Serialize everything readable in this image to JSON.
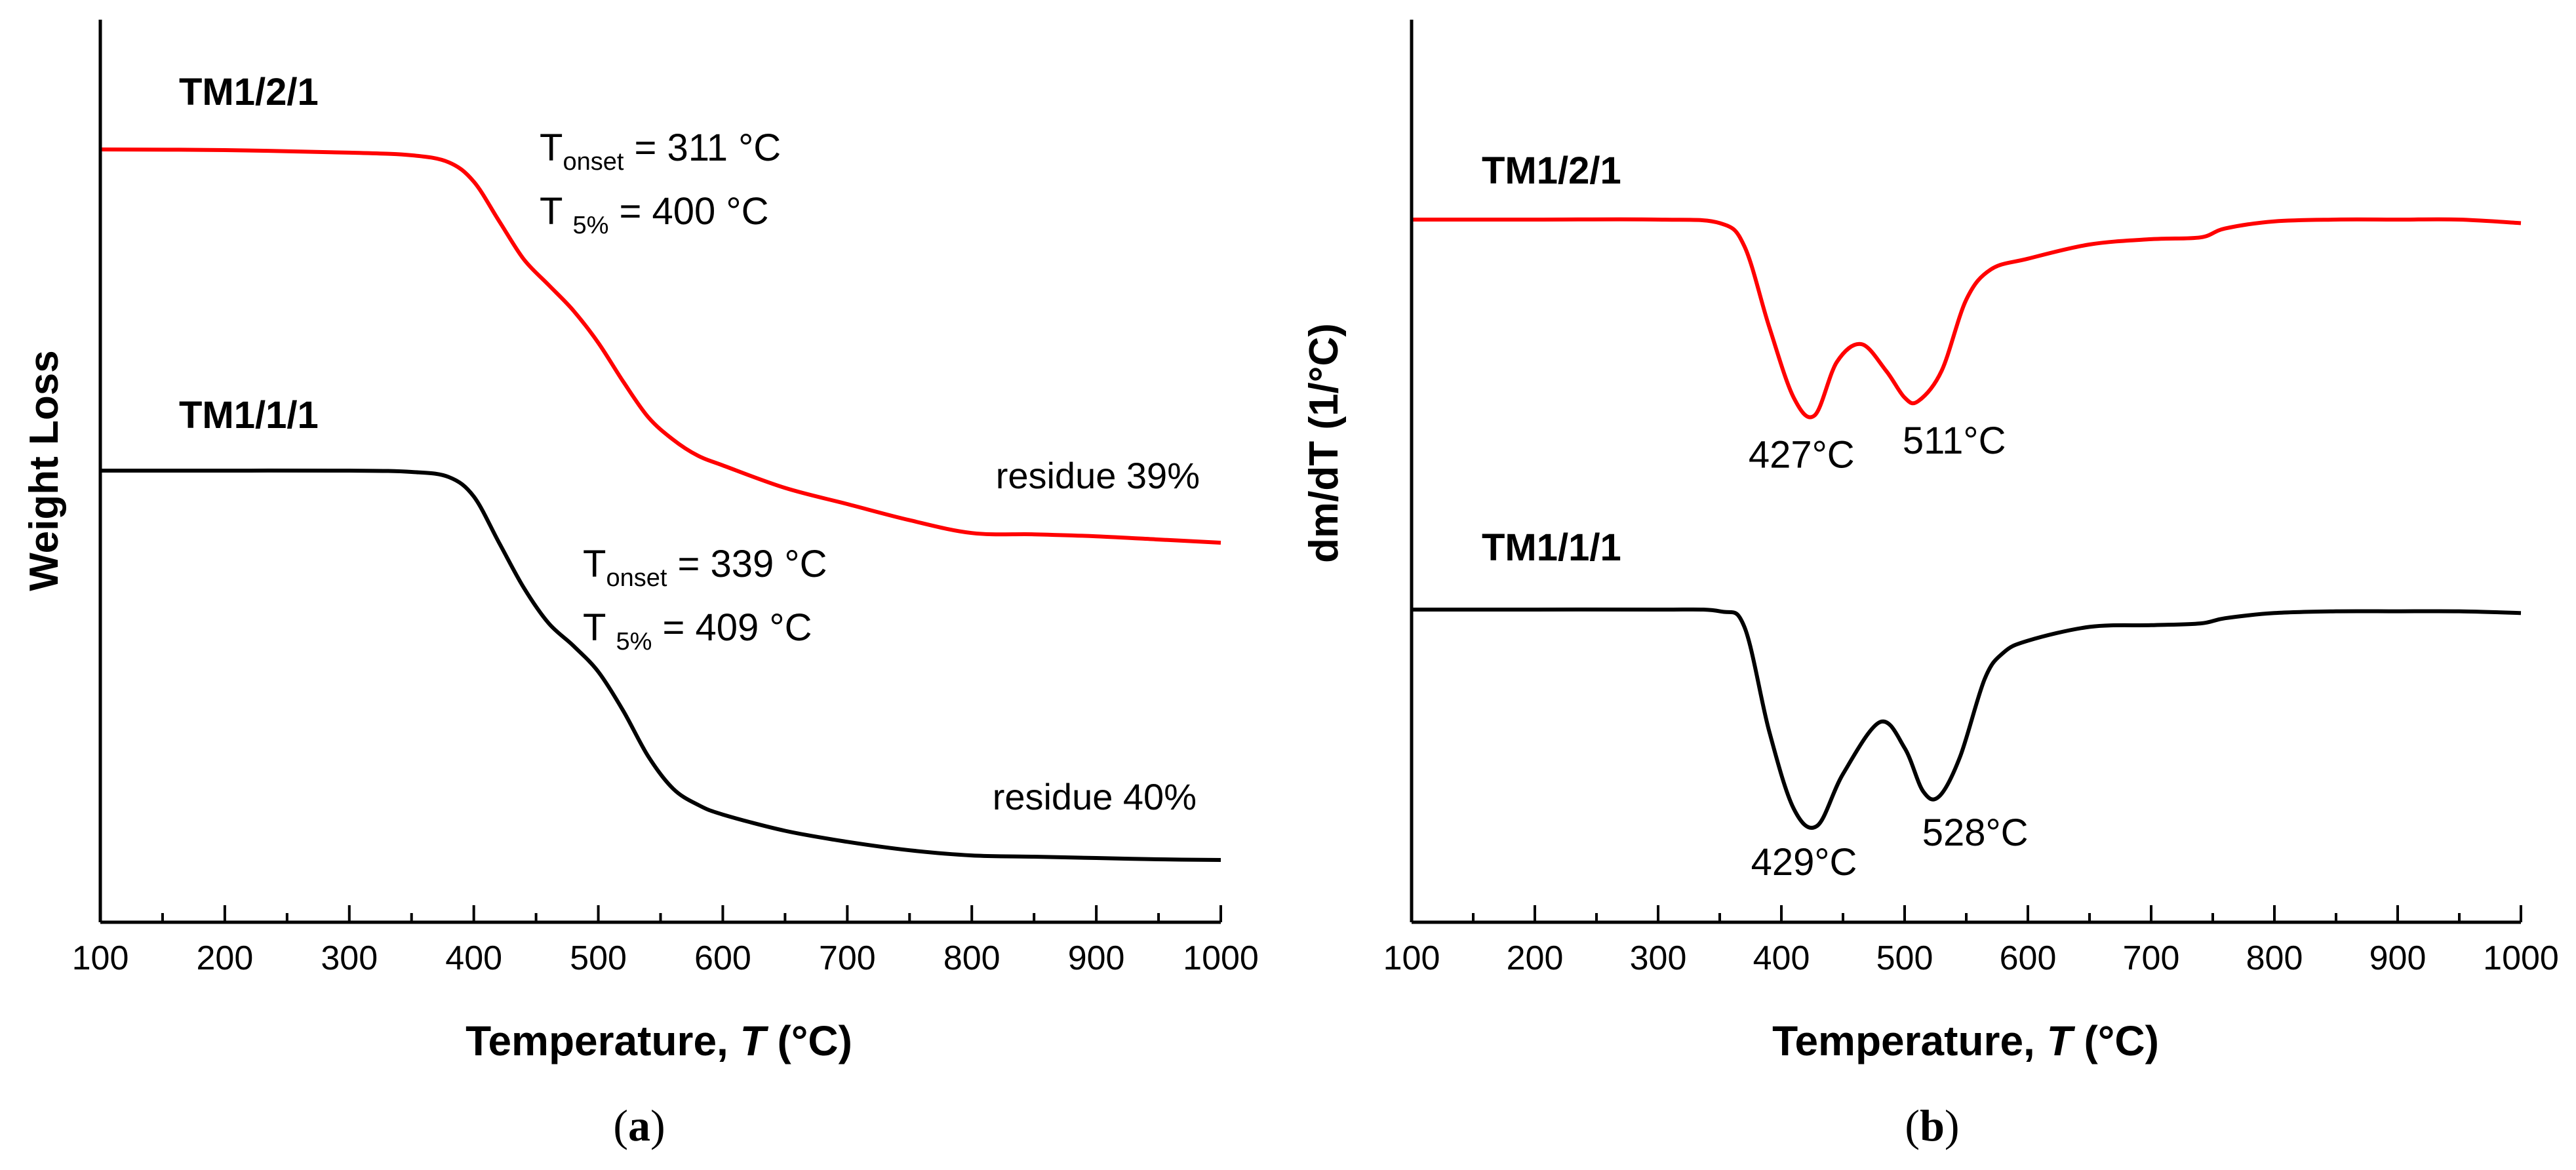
{
  "chart_data": [
    {
      "type": "line",
      "xlabel_main": "Temperature, ",
      "xlabel_italic": "T",
      "xlabel_unit": " (°C)",
      "ylabel": "Weight Loss",
      "xlim": [
        100,
        1000
      ],
      "xticks": [
        100,
        200,
        300,
        400,
        500,
        600,
        700,
        800,
        900,
        1000
      ],
      "y_tick_labels": false,
      "grid": false,
      "panel_label_open": "(",
      "panel_label_letter": "a",
      "panel_label_close": ")",
      "series": [
        {
          "name": "TM1/2/1",
          "color": "#ff0000",
          "x": [
            100,
            200,
            300,
            350,
            380,
            400,
            420,
            440,
            460,
            480,
            500,
            520,
            540,
            560,
            580,
            600,
            650,
            700,
            750,
            800,
            850,
            900,
            950,
            1000
          ],
          "y": [
            100,
            99.9,
            99.5,
            99.1,
            98,
            95,
            89,
            83,
            79,
            75,
            70,
            64,
            58.5,
            55,
            52.5,
            51,
            47.5,
            45,
            42.5,
            40.5,
            40.3,
            40,
            39.5,
            39
          ],
          "annotations": [
            {
              "line1": "T",
              "sub1": "onset",
              "val1": " = 311 °C"
            },
            {
              "line2": "T ",
              "sub2": "5%",
              "val2": " = 400 °C"
            }
          ],
          "residue": "residue 39%"
        },
        {
          "name": "TM1/1/1",
          "color": "#000000",
          "x": [
            100,
            200,
            300,
            350,
            380,
            400,
            420,
            440,
            460,
            480,
            500,
            520,
            540,
            560,
            580,
            600,
            650,
            700,
            750,
            800,
            850,
            900,
            950,
            1000
          ],
          "y": [
            100,
            100,
            100,
            99.8,
            99,
            96,
            89,
            82,
            76.5,
            73,
            69,
            63,
            56,
            51,
            48.5,
            47,
            44.5,
            42.8,
            41.5,
            40.7,
            40.5,
            40.3,
            40.1,
            40
          ],
          "annotations": [
            {
              "line1": "T",
              "sub1": "onset",
              "val1": " = 339 °C"
            },
            {
              "line2": "T ",
              "sub2": "5%",
              "val2": " = 409 °C"
            }
          ],
          "residue": "residue 40%"
        }
      ]
    },
    {
      "type": "line",
      "xlabel_main": "Temperature, ",
      "xlabel_italic": "T",
      "xlabel_unit": " (°C)",
      "ylabel": "dm/dT (1/°C)",
      "xlim": [
        100,
        1000
      ],
      "xticks": [
        100,
        200,
        300,
        400,
        500,
        600,
        700,
        800,
        900,
        1000
      ],
      "y_tick_labels": false,
      "grid": false,
      "panel_label_open": "(",
      "panel_label_letter": "b",
      "panel_label_close": ")",
      "series": [
        {
          "name": "TM1/2/1",
          "color": "#ff0000",
          "x": [
            100,
            200,
            300,
            350,
            370,
            390,
            410,
            427,
            445,
            465,
            485,
            500,
            511,
            530,
            550,
            570,
            600,
            650,
            700,
            740,
            760,
            800,
            850,
            900,
            950,
            1000
          ],
          "y": [
            0,
            0,
            0,
            -0.02,
            -0.15,
            -0.6,
            -1.0,
            -1.1,
            -0.8,
            -0.7,
            -0.85,
            -1.0,
            -1.02,
            -0.85,
            -0.45,
            -0.28,
            -0.22,
            -0.14,
            -0.11,
            -0.1,
            -0.05,
            -0.01,
            0,
            0,
            0,
            -0.02
          ],
          "peaks": [
            "427°C",
            "511°C"
          ],
          "peak_x": [
            427,
            511
          ]
        },
        {
          "name": "TM1/1/1",
          "color": "#000000",
          "x": [
            100,
            200,
            300,
            350,
            370,
            390,
            410,
            429,
            450,
            480,
            500,
            515,
            528,
            545,
            565,
            580,
            600,
            650,
            700,
            740,
            760,
            800,
            850,
            900,
            950,
            1000
          ],
          "y": [
            0,
            0,
            0,
            -0.01,
            -0.1,
            -0.7,
            -1.15,
            -1.25,
            -0.95,
            -0.65,
            -0.8,
            -1.05,
            -1.08,
            -0.85,
            -0.4,
            -0.25,
            -0.18,
            -0.1,
            -0.09,
            -0.08,
            -0.05,
            -0.02,
            -0.01,
            -0.01,
            -0.01,
            -0.02
          ],
          "peaks": [
            "429°C",
            "528°C"
          ],
          "peak_x": [
            429,
            528
          ]
        }
      ]
    }
  ]
}
